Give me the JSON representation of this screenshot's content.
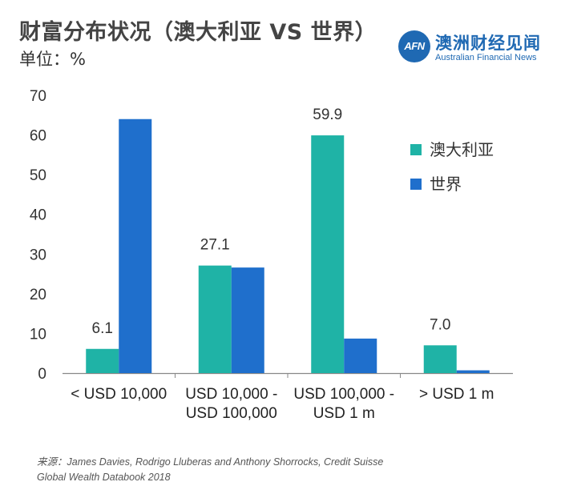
{
  "header": {
    "title": "财富分布状况（澳大利亚 VS 世界）",
    "unit": "单位：%"
  },
  "logo": {
    "badge": "AFN",
    "name_cn": "澳洲财经见闻",
    "name_en": "Australian Financial News"
  },
  "chart_data": {
    "type": "bar",
    "categories": [
      [
        "< USD 10,000"
      ],
      [
        "USD 10,000 -",
        "USD 100,000"
      ],
      [
        "USD 100,000 -",
        "USD 1 m"
      ],
      [
        "> USD 1 m"
      ]
    ],
    "series": [
      {
        "name": "澳大利亚",
        "values": [
          6.1,
          27.1,
          59.9,
          7.0
        ],
        "color": "#1fb3a6"
      },
      {
        "name": "世界",
        "values": [
          64.0,
          26.6,
          8.7,
          0.7
        ],
        "color": "#1f6fcc"
      }
    ],
    "data_labels": {
      "series": 0,
      "texts": [
        "6.1",
        "27.1",
        "59.9",
        "7.0"
      ]
    },
    "yticks": [
      "0",
      "10",
      "20",
      "30",
      "40",
      "50",
      "60",
      "70"
    ],
    "ylim": [
      0,
      70
    ],
    "grid": false,
    "legend_position": "right"
  },
  "footer": {
    "source_line1": "来源：James Davies, Rodrigo Lluberas and Anthony Shorrocks, Credit Suisse",
    "source_line2": "Global Wealth Databook 2018"
  }
}
